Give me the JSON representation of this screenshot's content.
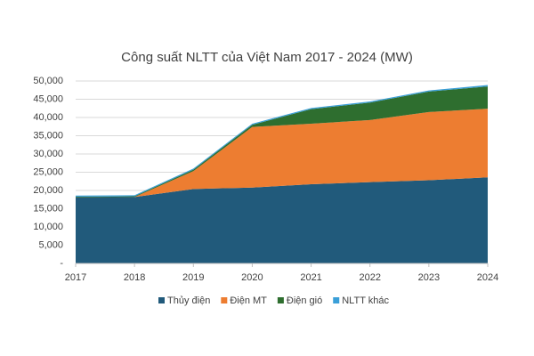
{
  "chart_data": {
    "type": "stacked_area",
    "title": "Công suất NLTT của Việt Nam 2017 - 2024 (MW)",
    "x": [
      2017,
      2018,
      2019,
      2020,
      2021,
      2022,
      2023,
      2024
    ],
    "xlim": [
      2017,
      2024
    ],
    "xticks": [
      2017,
      2018,
      2019,
      2020,
      2021,
      2022,
      2023,
      2024
    ],
    "ylim": [
      0,
      50000
    ],
    "yticks": [
      {
        "value": 0,
        "label": "-"
      },
      {
        "value": 5000,
        "label": "5,000"
      },
      {
        "value": 10000,
        "label": "10,000"
      },
      {
        "value": 15000,
        "label": "15,000"
      },
      {
        "value": 20000,
        "label": "20,000"
      },
      {
        "value": 25000,
        "label": "25,000"
      },
      {
        "value": 30000,
        "label": "30,000"
      },
      {
        "value": 35000,
        "label": "35,000"
      },
      {
        "value": 40000,
        "label": "40,000"
      },
      {
        "value": 45000,
        "label": "45,000"
      },
      {
        "value": 50000,
        "label": "50,000"
      }
    ],
    "grid": true,
    "legend": "bottom",
    "series": [
      {
        "name": "Thủy điện",
        "color": "#215a7b",
        "values": [
          18100,
          18200,
          20400,
          20800,
          21700,
          22300,
          22800,
          23600
        ]
      },
      {
        "name": "Điện MT",
        "color": "#ed7d31",
        "values": [
          0,
          0,
          4900,
          16600,
          16600,
          17000,
          18700,
          18800
        ]
      },
      {
        "name": "Điện gió",
        "color": "#2e6e2f",
        "values": [
          200,
          200,
          400,
          600,
          4000,
          4800,
          5600,
          6100
        ]
      },
      {
        "name": "NLTT khác",
        "color": "#3a9fd8",
        "values": [
          300,
          300,
          300,
          300,
          300,
          300,
          300,
          400
        ]
      }
    ]
  }
}
